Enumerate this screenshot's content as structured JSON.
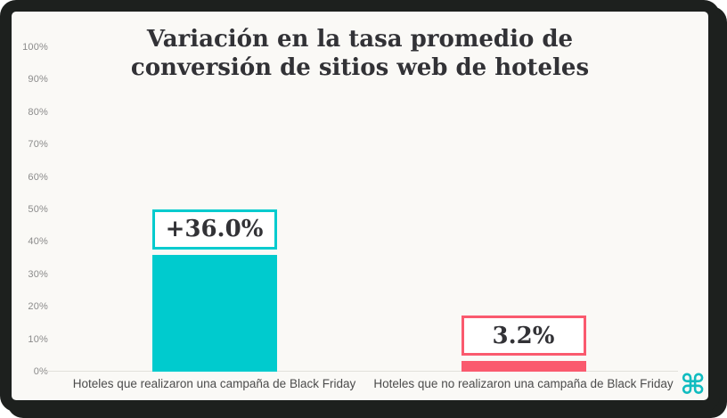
{
  "chart_data": {
    "type": "bar",
    "title": "Variación en la tasa promedio de conversión de sitios web de hoteles",
    "categories": [
      "Hoteles que realizaron una campaña de Black Friday",
      "Hoteles que no realizaron una campaña de Black Friday"
    ],
    "values": [
      36.0,
      3.2
    ],
    "value_labels": [
      "+36.0%",
      "3.2%"
    ],
    "bar_colors": [
      "#00cbce",
      "#fa5a6e"
    ],
    "xlabel": "",
    "ylabel": "",
    "ylim": [
      0,
      100
    ],
    "ytick_step": 10,
    "yticks": [
      "100%",
      "90%",
      "80%",
      "70%",
      "60%",
      "50%",
      "40%",
      "30%",
      "20%",
      "10%",
      "0%"
    ],
    "grid": false,
    "legend": false,
    "annotation_style": "boxed value label above each bar, box border matches bar color"
  },
  "branding": {
    "logo_icon": "command-symbol-logo",
    "logo_glyph": "⌘",
    "logo_color": "#10bcc0"
  },
  "theme": {
    "card_background": "#faf9f6",
    "frame_color": "#1d201e",
    "title_color": "#323236",
    "axis_tick_color": "#8b8b8b",
    "category_label_color": "#4c4c4c",
    "baseline_color": "#e2e0db"
  }
}
